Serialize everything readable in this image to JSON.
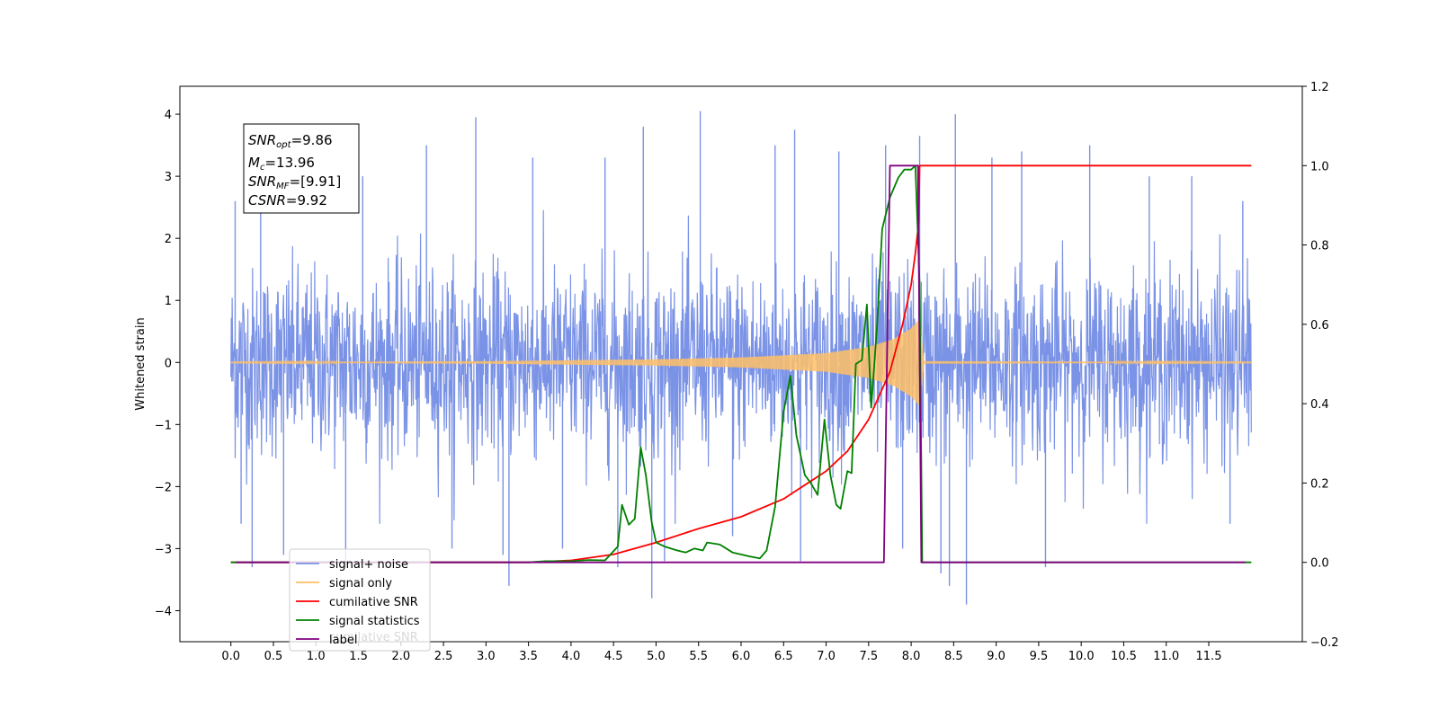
{
  "chart_data": {
    "type": "line",
    "xlabel": "",
    "ylabel": "Whitened strain",
    "xlim": [
      -0.6,
      12.6
    ],
    "ylim": [
      -4.5,
      4.45
    ],
    "y2lim": [
      -0.2,
      1.2
    ],
    "x_ticks": [
      0.0,
      0.5,
      1.0,
      1.5,
      2.0,
      2.5,
      3.0,
      3.5,
      4.0,
      4.5,
      5.0,
      5.5,
      6.0,
      6.5,
      7.0,
      7.5,
      8.0,
      8.5,
      9.0,
      9.5,
      10.0,
      10.5,
      11.0,
      11.5
    ],
    "x_tick_labels": [
      "0.0",
      "0.5",
      "1.0",
      "1.5",
      "2.0",
      "2.5",
      "3.0",
      "3.5",
      "4.0",
      "4.5",
      "5.0",
      "5.5",
      "6.0",
      "6.5",
      "7.0",
      "7.5",
      "8.0",
      "8.5",
      "9.0",
      "9.5",
      "10.0",
      "10.5",
      "11.0",
      "11.5"
    ],
    "y_ticks": [
      -4,
      -3,
      -2,
      -1,
      0,
      1,
      2,
      3,
      4
    ],
    "y_tick_labels": [
      "−4",
      "−3",
      "−2",
      "−1",
      "0",
      "1",
      "2",
      "3",
      "4"
    ],
    "y2_ticks": [
      -0.2,
      0.0,
      0.2,
      0.4,
      0.6,
      0.8,
      1.0,
      1.2
    ],
    "y2_tick_labels": [
      "−0.2",
      "0.0",
      "0.2",
      "0.4",
      "0.6",
      "0.8",
      "1.0",
      "1.2"
    ],
    "grid": false,
    "legend_placement": "lower-left",
    "annotation": {
      "snr_opt": "9.86",
      "mc": "13.96",
      "snr_mf": "[9.91]",
      "csnr": "9.92"
    },
    "series": [
      {
        "name": "signal+ noise",
        "axis": "left",
        "color": "#7b93e6",
        "description_kind": "noise",
        "x_range": [
          0.0,
          12.0
        ],
        "envelope_typical": [
          -1.5,
          1.5
        ],
        "spikes": [
          [
            0.05,
            2.6
          ],
          [
            0.12,
            -2.6
          ],
          [
            0.25,
            -3.3
          ],
          [
            0.35,
            2.9
          ],
          [
            0.62,
            -3.1
          ],
          [
            1.35,
            -3.3
          ],
          [
            1.55,
            3.0
          ],
          [
            2.3,
            3.5
          ],
          [
            2.6,
            -3.0
          ],
          [
            2.88,
            3.95
          ],
          [
            3.2,
            -3.1
          ],
          [
            3.27,
            -3.6
          ],
          [
            3.55,
            3.3
          ],
          [
            3.9,
            -3.0
          ],
          [
            4.4,
            3.3
          ],
          [
            4.55,
            -3.3
          ],
          [
            4.85,
            3.8
          ],
          [
            4.95,
            -3.8
          ],
          [
            5.1,
            -3.2
          ],
          [
            5.52,
            4.05
          ],
          [
            5.9,
            -2.8
          ],
          [
            6.4,
            3.5
          ],
          [
            6.63,
            3.75
          ],
          [
            6.7,
            -3.2
          ],
          [
            7.15,
            3.4
          ],
          [
            7.7,
            3.5
          ],
          [
            7.9,
            -3.0
          ],
          [
            8.1,
            3.65
          ],
          [
            8.35,
            -3.4
          ],
          [
            8.45,
            -3.6
          ],
          [
            8.52,
            4.0
          ],
          [
            8.65,
            -3.9
          ],
          [
            8.95,
            3.3
          ],
          [
            9.3,
            3.4
          ],
          [
            9.58,
            -3.3
          ],
          [
            10.1,
            3.5
          ],
          [
            10.8,
            3.0
          ],
          [
            11.3,
            3.0
          ],
          [
            11.75,
            -2.6
          ],
          [
            11.9,
            2.6
          ]
        ]
      },
      {
        "name": "signal only",
        "axis": "left",
        "color": "#ffbf66",
        "description_kind": "chirp",
        "x_range": [
          0.0,
          12.0
        ],
        "amplitude_points": [
          [
            0.0,
            0.005
          ],
          [
            3.0,
            0.02
          ],
          [
            5.0,
            0.05
          ],
          [
            6.0,
            0.08
          ],
          [
            7.0,
            0.15
          ],
          [
            7.5,
            0.25
          ],
          [
            7.8,
            0.38
          ],
          [
            8.0,
            0.55
          ],
          [
            8.1,
            0.7
          ],
          [
            8.15,
            0.02
          ],
          [
            12.0,
            0.005
          ]
        ]
      },
      {
        "name": "cumilative SNR",
        "axis": "right",
        "color": "#ff0000",
        "points": [
          [
            0.0,
            0.0
          ],
          [
            3.5,
            0.0
          ],
          [
            4.0,
            0.005
          ],
          [
            4.5,
            0.02
          ],
          [
            5.0,
            0.05
          ],
          [
            5.5,
            0.085
          ],
          [
            6.0,
            0.115
          ],
          [
            6.5,
            0.16
          ],
          [
            7.0,
            0.23
          ],
          [
            7.25,
            0.28
          ],
          [
            7.5,
            0.36
          ],
          [
            7.75,
            0.48
          ],
          [
            7.9,
            0.6
          ],
          [
            8.0,
            0.7
          ],
          [
            8.05,
            0.78
          ],
          [
            8.09,
            0.86
          ],
          [
            8.1,
            1.0
          ],
          [
            12.0,
            1.0
          ]
        ]
      },
      {
        "name": "signal statistics",
        "axis": "right",
        "color": "#008000",
        "points": [
          [
            0.0,
            0.0
          ],
          [
            3.5,
            0.0
          ],
          [
            3.7,
            0.003
          ],
          [
            4.0,
            0.003
          ],
          [
            4.2,
            0.006
          ],
          [
            4.4,
            0.005
          ],
          [
            4.55,
            0.04
          ],
          [
            4.6,
            0.145
          ],
          [
            4.68,
            0.095
          ],
          [
            4.75,
            0.11
          ],
          [
            4.82,
            0.29
          ],
          [
            4.88,
            0.22
          ],
          [
            4.95,
            0.1
          ],
          [
            5.0,
            0.05
          ],
          [
            5.1,
            0.04
          ],
          [
            5.25,
            0.03
          ],
          [
            5.35,
            0.025
          ],
          [
            5.45,
            0.035
          ],
          [
            5.55,
            0.03
          ],
          [
            5.6,
            0.05
          ],
          [
            5.75,
            0.045
          ],
          [
            5.9,
            0.025
          ],
          [
            6.0,
            0.02
          ],
          [
            6.1,
            0.015
          ],
          [
            6.22,
            0.01
          ],
          [
            6.3,
            0.03
          ],
          [
            6.4,
            0.14
          ],
          [
            6.5,
            0.38
          ],
          [
            6.58,
            0.47
          ],
          [
            6.65,
            0.32
          ],
          [
            6.75,
            0.22
          ],
          [
            6.82,
            0.2
          ],
          [
            6.9,
            0.17
          ],
          [
            6.98,
            0.36
          ],
          [
            7.05,
            0.22
          ],
          [
            7.12,
            0.145
          ],
          [
            7.17,
            0.135
          ],
          [
            7.25,
            0.23
          ],
          [
            7.3,
            0.225
          ],
          [
            7.35,
            0.5
          ],
          [
            7.42,
            0.51
          ],
          [
            7.48,
            0.65
          ],
          [
            7.53,
            0.39
          ],
          [
            7.6,
            0.6
          ],
          [
            7.66,
            0.84
          ],
          [
            7.75,
            0.92
          ],
          [
            7.85,
            0.97
          ],
          [
            7.92,
            0.99
          ],
          [
            8.0,
            0.99
          ],
          [
            8.05,
            1.0
          ],
          [
            8.1,
            0.7
          ],
          [
            8.13,
            0.0
          ],
          [
            12.0,
            0.0
          ]
        ]
      },
      {
        "name": "label",
        "axis": "right",
        "color": "#800080",
        "points": [
          [
            0.06,
            0.0
          ],
          [
            7.68,
            0.0
          ],
          [
            7.75,
            1.0
          ],
          [
            8.08,
            1.0
          ],
          [
            8.12,
            0.0
          ],
          [
            11.93,
            0.0
          ]
        ]
      }
    ]
  },
  "legend": {
    "entries": [
      {
        "label": "signal+ noise",
        "color": "#7b93e6"
      },
      {
        "label": "signal only",
        "color": "#ffbf66"
      },
      {
        "label": "cumilative SNR",
        "color": "#ff0000"
      },
      {
        "label": "signal statistics",
        "color": "#008000"
      },
      {
        "label": "label",
        "color": "#800080"
      }
    ],
    "ghost_text": "cumilative SNR"
  }
}
